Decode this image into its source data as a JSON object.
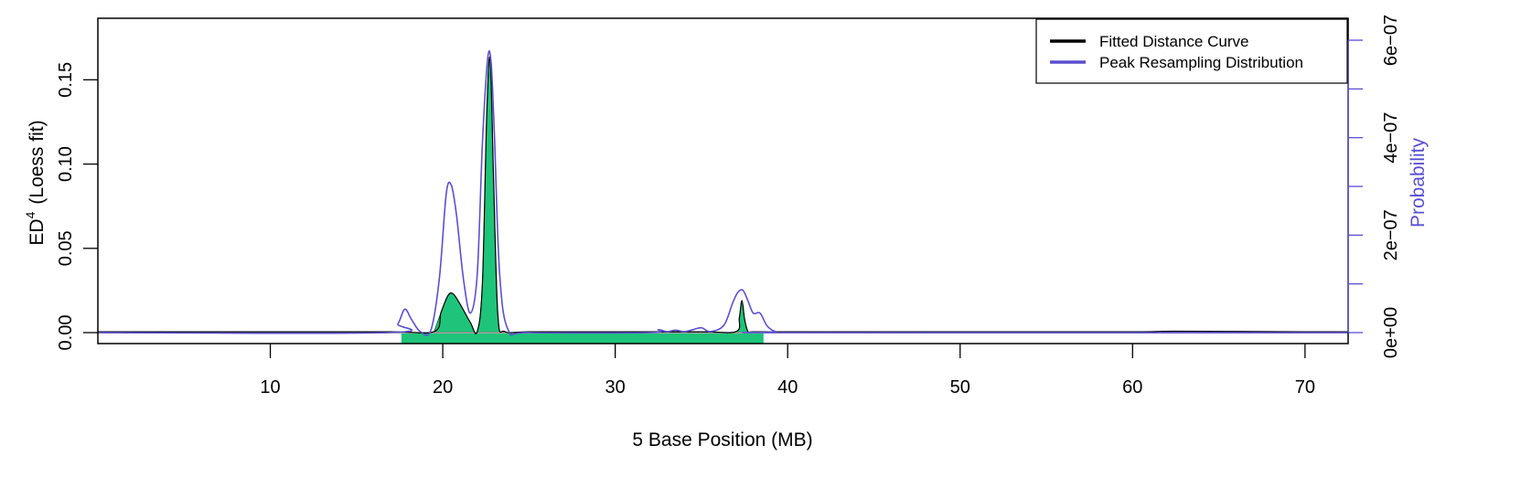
{
  "chart_data": {
    "type": "line",
    "title": "",
    "xlabel": "5 Base Position (MB)",
    "ylabel": "ED^4 (Loess fit)",
    "ylabel_main": "ED",
    "ylabel_sup": "4",
    "ylabel_rest": "(Loess fit)",
    "y2label": "Probability",
    "xlim": [
      0,
      72.5
    ],
    "ylim": [
      -0.0065,
      0.1865
    ],
    "y2lim": [
      0,
      6.5e-07
    ],
    "grid": false,
    "legend_position": "top-right",
    "x_ticks": [
      10,
      20,
      30,
      40,
      50,
      60,
      70
    ],
    "x_tick_labels": [
      "10",
      "20",
      "30",
      "40",
      "50",
      "60",
      "70"
    ],
    "y_ticks": [
      0.0,
      0.05,
      0.1,
      0.15
    ],
    "y_tick_labels": [
      "0.00",
      "0.05",
      "0.10",
      "0.15"
    ],
    "y2_ticks": [
      0,
      1e-07,
      2e-07,
      3e-07,
      4e-07,
      5e-07,
      6e-07
    ],
    "y2_tick_labels": [
      "0e+00",
      "",
      "2e−07",
      "",
      "4e−07",
      "",
      "6e−07"
    ],
    "colors": {
      "fitted": "#000000",
      "resampling": "#5b4fcf",
      "fill": "#1ec47a",
      "axis2": "#5b4fcf"
    },
    "series": [
      {
        "name": "Fitted Distance Curve",
        "axis": "left",
        "x": [
          0,
          10,
          17,
          19.5,
          19.9,
          20.3,
          20.6,
          21.0,
          21.6,
          22.0,
          22.3,
          22.55,
          22.75,
          22.95,
          23.2,
          23.6,
          25,
          30,
          35,
          37.0,
          37.2,
          37.35,
          37.5,
          37.7,
          38.0,
          40,
          50,
          60,
          62.5,
          70,
          72.5
        ],
        "y": [
          0.0005,
          0.0005,
          0.0005,
          0.0006,
          0.012,
          0.022,
          0.023,
          0.017,
          0.006,
          0.0006,
          0.03,
          0.13,
          0.162,
          0.09,
          0.01,
          0.0006,
          0.0005,
          0.0005,
          0.0005,
          0.0006,
          0.009,
          0.019,
          0.008,
          0.0006,
          0.0005,
          0.0005,
          0.0005,
          0.0005,
          0.0008,
          0.0005,
          0.0005
        ]
      },
      {
        "name": "Peak Resampling Distribution",
        "axis": "right",
        "x": [
          0,
          16.8,
          17.4,
          17.8,
          18.2,
          18.7,
          19.3,
          19.8,
          20.2,
          20.5,
          20.8,
          21.2,
          21.6,
          22.0,
          22.3,
          22.6,
          22.8,
          23.0,
          23.3,
          23.8,
          25,
          32,
          32.5,
          33,
          33.5,
          34,
          34.5,
          35,
          35.5,
          36.3,
          36.8,
          37.1,
          37.4,
          37.7,
          38.0,
          38.4,
          38.8,
          39.3,
          40,
          72.5
        ],
        "y": [
          0,
          0,
          1.8e-08,
          4.8e-08,
          2.6e-08,
          2e-09,
          4e-09,
          1.1e-07,
          2.85e-07,
          3.02e-07,
          2.4e-07,
          1.1e-07,
          4e-08,
          1.2e-07,
          3.9e-07,
          5.6e-07,
          5.55e-07,
          4e-07,
          1.2e-07,
          5e-09,
          0,
          0,
          6e-09,
          2e-09,
          5e-09,
          2e-09,
          6e-09,
          1e-08,
          2e-09,
          1.5e-08,
          6e-08,
          8.2e-08,
          8.7e-08,
          6.5e-08,
          4e-08,
          4e-08,
          1.4e-08,
          2e-09,
          0,
          0
        ]
      }
    ],
    "shaded_interval": {
      "x_start": 17.6,
      "x_end": 38.6,
      "label": ""
    }
  },
  "legend": {
    "items": [
      {
        "label": "Fitted Distance Curve",
        "color": "#000000"
      },
      {
        "label": "Peak Resampling Distribution",
        "color": "#5b4fcf"
      }
    ]
  }
}
